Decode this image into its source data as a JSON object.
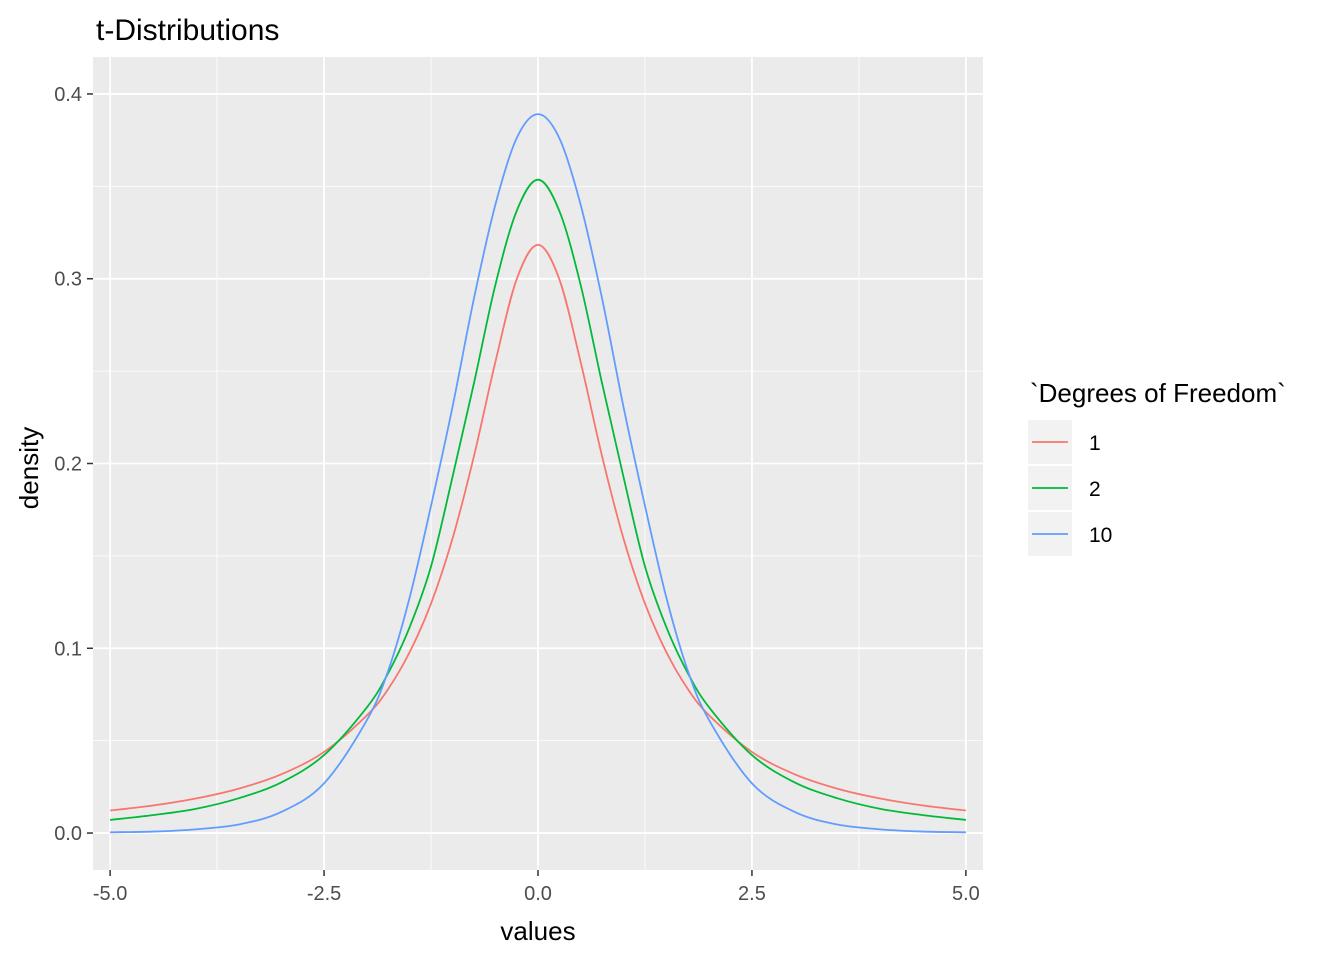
{
  "chart_data": {
    "type": "line",
    "title": "t-Distributions",
    "xlabel": "values",
    "ylabel": "density",
    "xlim": [
      -5.2,
      5.2
    ],
    "ylim": [
      -0.02,
      0.42
    ],
    "x_ticks": [
      -5.0,
      -2.5,
      0.0,
      2.5,
      5.0
    ],
    "x_tick_labels": [
      "-5.0",
      "-2.5",
      "0.0",
      "2.5",
      "5.0"
    ],
    "y_ticks": [
      0.0,
      0.1,
      0.2,
      0.3,
      0.4
    ],
    "y_tick_labels": [
      "0.0",
      "0.1",
      "0.2",
      "0.3",
      "0.4"
    ],
    "grid": true,
    "background_color": "#ebebeb",
    "grid_color": "#ffffff",
    "legend": {
      "title": "`Degrees of Freedom`",
      "position": "right",
      "entries": [
        "1",
        "2",
        "10"
      ]
    },
    "series": [
      {
        "name": "1",
        "color": "#f8766d",
        "x": [
          -5,
          -4.5,
          -4,
          -3.5,
          -3,
          -2.5,
          -2,
          -1.75,
          -1.5,
          -1.25,
          -1,
          -0.75,
          -0.5,
          -0.25,
          0,
          0.25,
          0.5,
          0.75,
          1,
          1.25,
          1.5,
          1.75,
          2,
          2.5,
          3,
          3.5,
          4,
          4.5,
          5
        ],
        "y": [
          0.0122,
          0.0149,
          0.0187,
          0.024,
          0.0318,
          0.0439,
          0.0637,
          0.078,
          0.0979,
          0.1242,
          0.1592,
          0.2037,
          0.2546,
          0.2996,
          0.3183,
          0.2996,
          0.2546,
          0.2037,
          0.1592,
          0.1242,
          0.0979,
          0.078,
          0.0637,
          0.0439,
          0.0318,
          0.024,
          0.0187,
          0.0149,
          0.0122
        ]
      },
      {
        "name": "2",
        "color": "#00ba38",
        "x": [
          -5,
          -4.5,
          -4,
          -3.5,
          -3,
          -2.5,
          -2,
          -1.75,
          -1.5,
          -1.25,
          -1,
          -0.75,
          -0.5,
          -0.25,
          0,
          0.25,
          0.5,
          0.75,
          1,
          1.25,
          1.5,
          1.75,
          2,
          2.5,
          3,
          3.5,
          4,
          4.5,
          5
        ],
        "y": [
          0.0071,
          0.0097,
          0.0131,
          0.0188,
          0.0274,
          0.0422,
          0.068,
          0.0866,
          0.1114,
          0.1443,
          0.1925,
          0.2431,
          0.2963,
          0.3366,
          0.3536,
          0.3366,
          0.2963,
          0.2431,
          0.1925,
          0.1443,
          0.1114,
          0.0866,
          0.068,
          0.0422,
          0.0274,
          0.0188,
          0.0131,
          0.0097,
          0.0071
        ]
      },
      {
        "name": "10",
        "color": "#619cff",
        "x": [
          -5,
          -4.5,
          -4,
          -3.5,
          -3,
          -2.5,
          -2,
          -1.75,
          -1.5,
          -1.25,
          -1,
          -0.75,
          -0.5,
          -0.25,
          0,
          0.25,
          0.5,
          0.75,
          1,
          1.25,
          1.5,
          1.75,
          2,
          2.5,
          3,
          3.5,
          4,
          4.5,
          5
        ],
        "y": [
          0.0004,
          0.0008,
          0.002,
          0.0046,
          0.0114,
          0.0269,
          0.0611,
          0.0879,
          0.1274,
          0.1771,
          0.2304,
          0.289,
          0.3397,
          0.376,
          0.3891,
          0.376,
          0.3397,
          0.289,
          0.2304,
          0.1771,
          0.1274,
          0.0879,
          0.0611,
          0.0269,
          0.0114,
          0.0046,
          0.002,
          0.0008,
          0.0004
        ]
      }
    ]
  }
}
